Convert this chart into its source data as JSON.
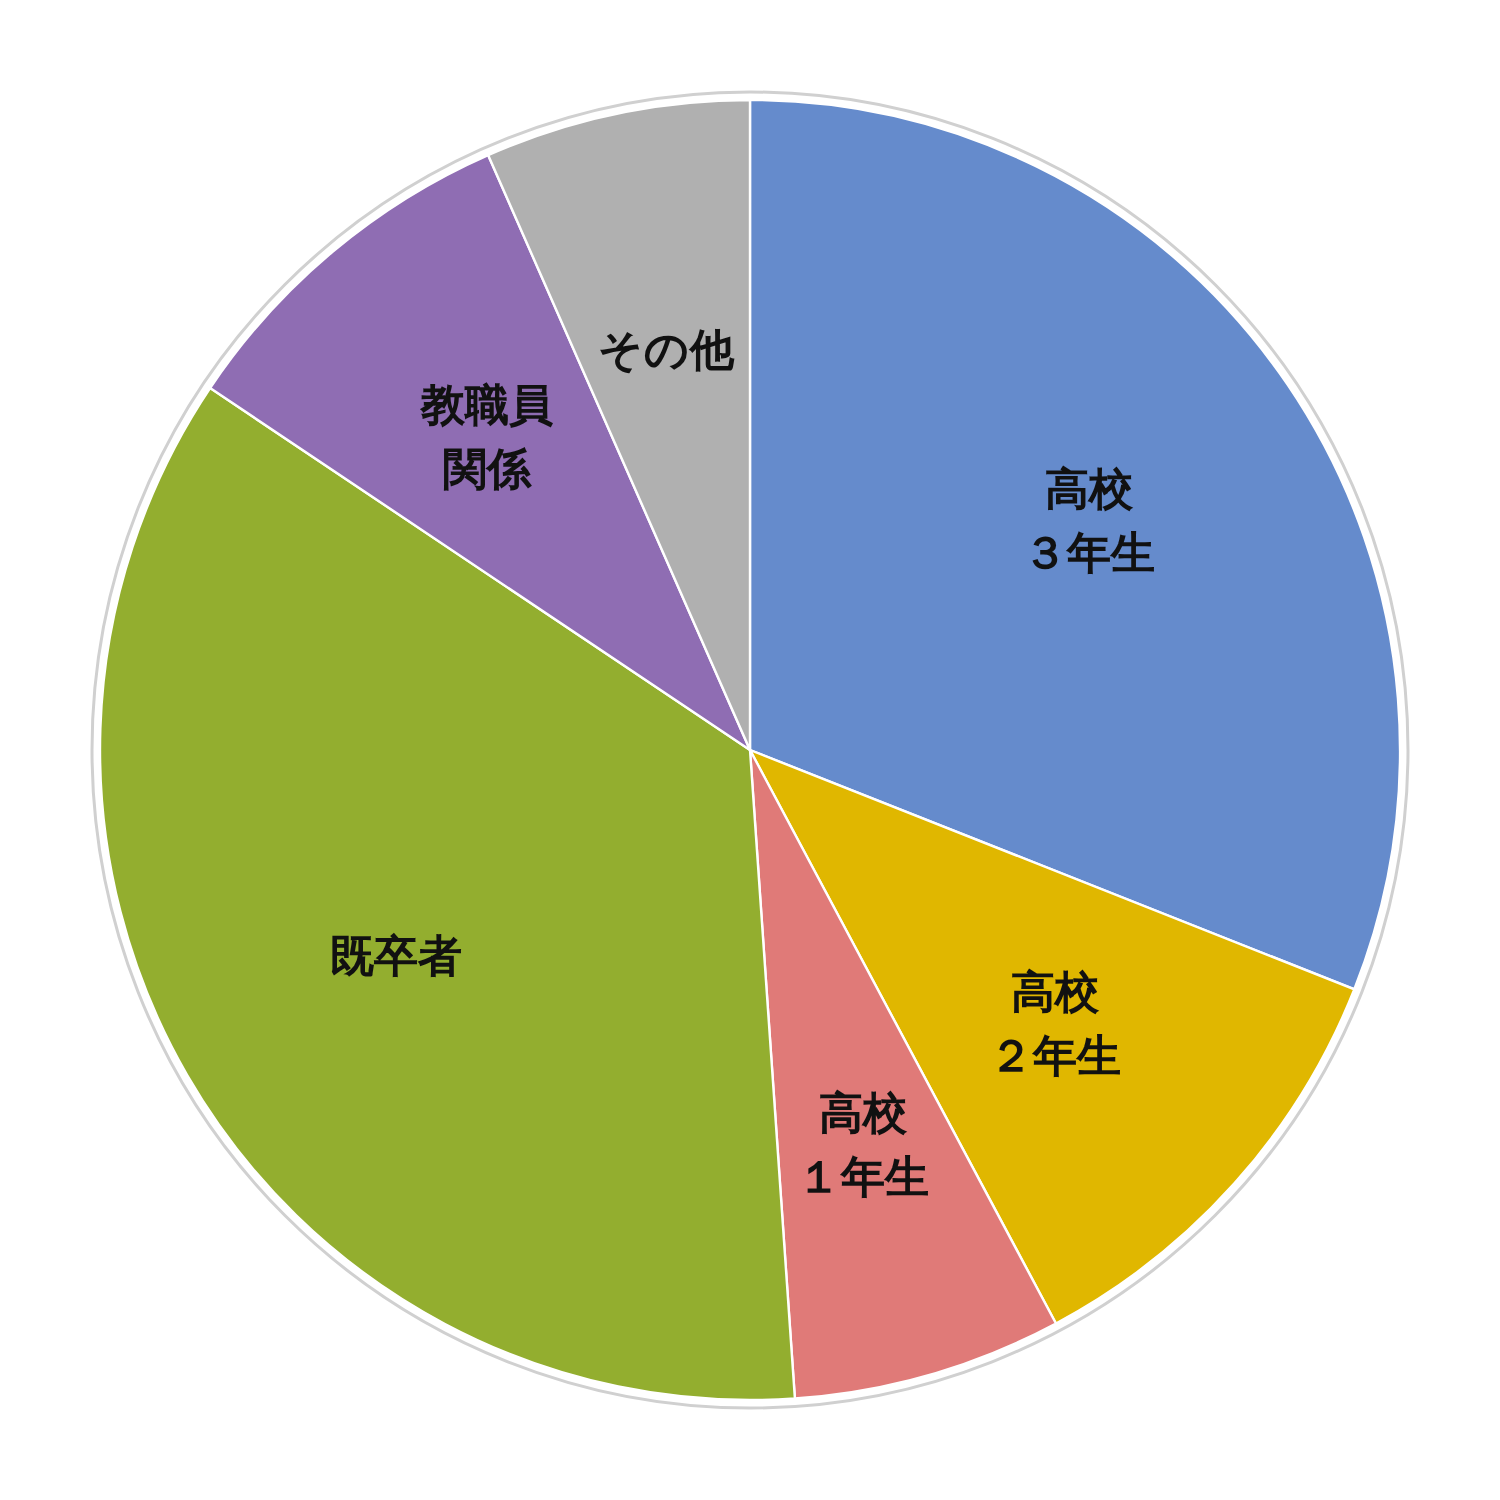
{
  "chart_data": {
    "type": "pie",
    "categories": [
      "高校３年生",
      "高校２年生",
      "高校１年生",
      "既卒者",
      "教職員関係",
      "その他"
    ],
    "values": [
      31.0,
      11.2,
      6.7,
      35.5,
      9.0,
      6.6
    ],
    "colors": [
      "#658bcc",
      "#e0b700",
      "#e07a78",
      "#93ae2f",
      "#8f6db3",
      "#b0b0b0"
    ]
  }
}
